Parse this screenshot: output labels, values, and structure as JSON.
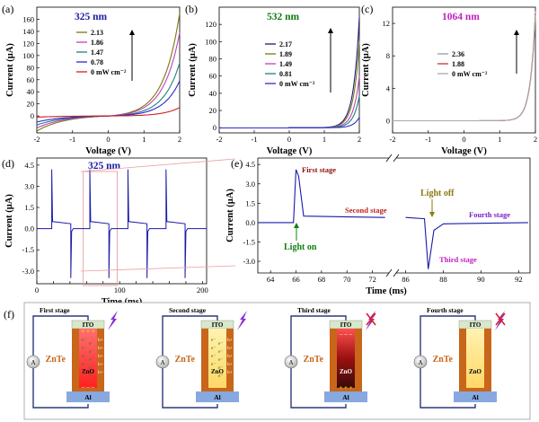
{
  "panels": {
    "a": {
      "label": "(a)",
      "title": "325 nm",
      "title_color": "#1a1aa8",
      "xlabel": "Voltage (V)",
      "ylabel": "Current (µA)",
      "xlim": [
        -2,
        2
      ],
      "ylim": [
        -28,
        180
      ],
      "xticks": [
        -2,
        -1,
        0,
        1,
        2
      ],
      "yticks": [
        0,
        20,
        40,
        60,
        80,
        100,
        120,
        140,
        160
      ],
      "legend": [
        "2.13",
        "1.86",
        "1.47",
        "0.78",
        "0 mW cm⁻²"
      ],
      "series": [
        {
          "name": "2.13",
          "color": "#7a7a10",
          "neg": 25,
          "pos": 170
        },
        {
          "name": "1.86",
          "color": "#c040c0",
          "neg": 20,
          "pos": 138
        },
        {
          "name": "1.47",
          "color": "#208080",
          "neg": 15,
          "pos": 88
        },
        {
          "name": "0.78",
          "color": "#2a2ad0",
          "neg": 10,
          "pos": 58
        },
        {
          "name": "0 mW cm⁻²",
          "color": "#d02020",
          "neg": 2,
          "pos": 14
        }
      ]
    },
    "b": {
      "label": "(b)",
      "title": "532 nm",
      "title_color": "#107a10",
      "xlabel": "Voltage (V)",
      "ylabel": "Current (µA)",
      "xlim": [
        -2,
        2
      ],
      "ylim": [
        -6,
        140
      ],
      "xticks": [
        -2,
        -1,
        0,
        1,
        2
      ],
      "yticks": [
        0,
        20,
        40,
        60,
        80,
        100,
        120
      ],
      "legend": [
        "2.17",
        "1.89",
        "1.49",
        "0.81",
        "0 mW cm⁻²"
      ],
      "series": [
        {
          "name": "2.17",
          "color": "#1a1a80",
          "pos": 128
        },
        {
          "name": "1.89",
          "color": "#7a7a10",
          "pos": 100
        },
        {
          "name": "1.49",
          "color": "#c040c0",
          "pos": 60
        },
        {
          "name": "0.81",
          "color": "#208080",
          "pos": 37
        },
        {
          "name": "0 mW cm⁻²",
          "color": "#2a2ad0",
          "pos": 12
        }
      ]
    },
    "c": {
      "label": "(c)",
      "title": "1064 nm",
      "title_color": "#c020c0",
      "xlabel": "Voltage (V)",
      "ylabel": "Current (µA)",
      "xlim": [
        -2,
        2
      ],
      "ylim": [
        -1.5,
        14
      ],
      "xticks": [
        -2,
        -1,
        0,
        1,
        2
      ],
      "yticks": [
        0,
        4,
        8,
        12
      ],
      "legend": [
        "2.36",
        "1.88",
        "0 mW cm⁻²"
      ],
      "series": [
        {
          "name": "2.36",
          "color": "#999999",
          "pos": 13.5
        },
        {
          "name": "1.88",
          "color": "#cc3333",
          "pos": 13.2
        },
        {
          "name": "0 mW cm⁻²",
          "color": "#aaaaaa",
          "pos": 13.0
        }
      ]
    },
    "d": {
      "label": "(d)",
      "title": "325 nm",
      "title_color": "#1a1aa8",
      "xlabel": "Time (ms)",
      "ylabel": "Current (µA)",
      "xlim": [
        0,
        205
      ],
      "ylim": [
        -3.9,
        5.0
      ],
      "xticks": [
        0,
        20,
        40,
        60,
        80,
        100,
        120,
        140,
        160,
        180,
        200
      ],
      "xtick_labels": [
        "0",
        "",
        "",
        "",
        "",
        "100",
        "",
        "",
        "",
        "",
        "200"
      ],
      "xtick_labels_shown": [
        "0",
        "100",
        "200"
      ],
      "yticks": [
        -3.0,
        -1.5,
        0.0,
        1.5,
        3.0,
        4.5
      ],
      "ytick_labels": [
        "-3.0",
        "-1.5",
        "0.0",
        "1.5",
        "3.0",
        "4.5"
      ],
      "on_times": [
        18,
        64,
        110,
        156
      ],
      "off_times": [
        41,
        87,
        133,
        179
      ],
      "highlight_range": [
        56,
        97
      ]
    },
    "e": {
      "label": "(e)",
      "xlabel": "Time (ms)",
      "ylabel": "Current (µA)",
      "xticks_left": [
        "64",
        "66",
        "68",
        "70",
        "72"
      ],
      "xticks_right": [
        "86",
        "88",
        "90",
        "92"
      ],
      "yticks": [
        "-3.0",
        "-1.5",
        "0.0",
        "1.5",
        "3.0",
        "4.5"
      ],
      "annotations": {
        "first": "First stage",
        "second": "Second stage",
        "third": "Third stage",
        "fourth": "Fourth stage",
        "light_on": "Light on",
        "light_off": "Light off"
      }
    },
    "f": {
      "label": "(f)",
      "stages": [
        {
          "title": "First stage",
          "ito": "ITO",
          "znte": "ZnTe",
          "zno": "ZnO",
          "al": "Al",
          "ammeter": "A"
        },
        {
          "title": "Second stage",
          "ito": "ITO",
          "znte": "ZnTe",
          "zno": "ZnO",
          "al": "Al",
          "ammeter": "A"
        },
        {
          "title": "Third stage",
          "ito": "ITO",
          "znte": "ZnTe",
          "zno": "ZnO",
          "al": "Al",
          "ammeter": "A"
        },
        {
          "title": "Fourth stage",
          "ito": "ITO",
          "znte": "ZnTe",
          "zno": "ZnO",
          "al": "Al",
          "ammeter": "A"
        }
      ],
      "carrier_h": "h+",
      "carrier_e": "e⁻"
    }
  },
  "chart_data": [
    {
      "type": "line",
      "panel": "a",
      "title": "325 nm",
      "xlabel": "Voltage (V)",
      "ylabel": "Current (µA)",
      "xlim": [
        -2,
        2
      ],
      "ylim": [
        -28,
        180
      ],
      "series": [
        {
          "name": "2.13",
          "x": [
            -2,
            -1,
            0,
            1,
            1.5,
            2
          ],
          "y": [
            -25,
            -6,
            0,
            10,
            55,
            170
          ]
        },
        {
          "name": "1.86",
          "x": [
            -2,
            -1,
            0,
            1,
            1.5,
            2
          ],
          "y": [
            -20,
            -5,
            0,
            8,
            45,
            138
          ]
        },
        {
          "name": "1.47",
          "x": [
            -2,
            -1,
            0,
            1,
            1.5,
            2
          ],
          "y": [
            -15,
            -4,
            0,
            6,
            30,
            88
          ]
        },
        {
          "name": "0.78",
          "x": [
            -2,
            -1,
            0,
            1,
            1.5,
            2
          ],
          "y": [
            -10,
            -3,
            0,
            4,
            20,
            58
          ]
        },
        {
          "name": "0 mW cm⁻²",
          "x": [
            -2,
            -1,
            0,
            1,
            1.5,
            2
          ],
          "y": [
            -2,
            0,
            0,
            1,
            5,
            14
          ]
        }
      ]
    },
    {
      "type": "line",
      "panel": "b",
      "title": "532 nm",
      "xlabel": "Voltage (V)",
      "ylabel": "Current (µA)",
      "xlim": [
        -2,
        2
      ],
      "ylim": [
        -6,
        140
      ],
      "series": [
        {
          "name": "2.17",
          "x": [
            -2,
            0,
            1.5,
            1.8,
            2
          ],
          "y": [
            -1,
            0,
            5,
            40,
            128
          ]
        },
        {
          "name": "1.89",
          "x": [
            -2,
            0,
            1.5,
            1.8,
            2
          ],
          "y": [
            -1,
            0,
            4,
            30,
            100
          ]
        },
        {
          "name": "1.49",
          "x": [
            -2,
            0,
            1.5,
            1.8,
            2
          ],
          "y": [
            -1,
            0,
            3,
            18,
            60
          ]
        },
        {
          "name": "0.81",
          "x": [
            -2,
            0,
            1.5,
            1.8,
            2
          ],
          "y": [
            -1,
            0,
            2,
            11,
            37
          ]
        },
        {
          "name": "0 mW cm⁻²",
          "x": [
            -2,
            0,
            1.5,
            1.8,
            2
          ],
          "y": [
            0,
            0,
            1,
            4,
            12
          ]
        }
      ]
    },
    {
      "type": "line",
      "panel": "c",
      "title": "1064 nm",
      "xlabel": "Voltage (V)",
      "ylabel": "Current (µA)",
      "xlim": [
        -2,
        2
      ],
      "ylim": [
        -1.5,
        14
      ],
      "series": [
        {
          "name": "2.36",
          "x": [
            -2,
            0,
            1.5,
            1.8,
            2
          ],
          "y": [
            0,
            0,
            0.2,
            3,
            13.5
          ]
        },
        {
          "name": "1.88",
          "x": [
            -2,
            0,
            1.5,
            1.8,
            2
          ],
          "y": [
            0,
            0,
            0.2,
            2.9,
            13.2
          ]
        },
        {
          "name": "0 mW cm⁻²",
          "x": [
            -2,
            0,
            1.5,
            1.8,
            2
          ],
          "y": [
            0,
            0,
            0.2,
            2.8,
            13.0
          ]
        }
      ]
    },
    {
      "type": "line",
      "panel": "d",
      "title": "325 nm",
      "xlabel": "Time (ms)",
      "ylabel": "Current (µA)",
      "xlim": [
        0,
        205
      ],
      "ylim": [
        -3.9,
        5.0
      ],
      "series": [
        {
          "name": "",
          "peak_on": 4.2,
          "plateau": 0.4,
          "peak_off": -3.5
        }
      ]
    },
    {
      "type": "line",
      "panel": "e",
      "xlabel": "Time (ms)",
      "ylabel": "Current (µA)",
      "ylim": [
        -3.9,
        5.0
      ],
      "series": [
        {
          "name": "",
          "x": [
            63,
            65.8,
            66.0,
            66.2,
            66.6,
            73,
            86,
            87.0,
            87.2,
            87.5,
            88,
            92.5
          ],
          "y": [
            0,
            0,
            4.1,
            3.6,
            0.5,
            0.4,
            0.4,
            0.3,
            -3.6,
            -0.6,
            -0.1,
            0
          ]
        }
      ]
    }
  ]
}
